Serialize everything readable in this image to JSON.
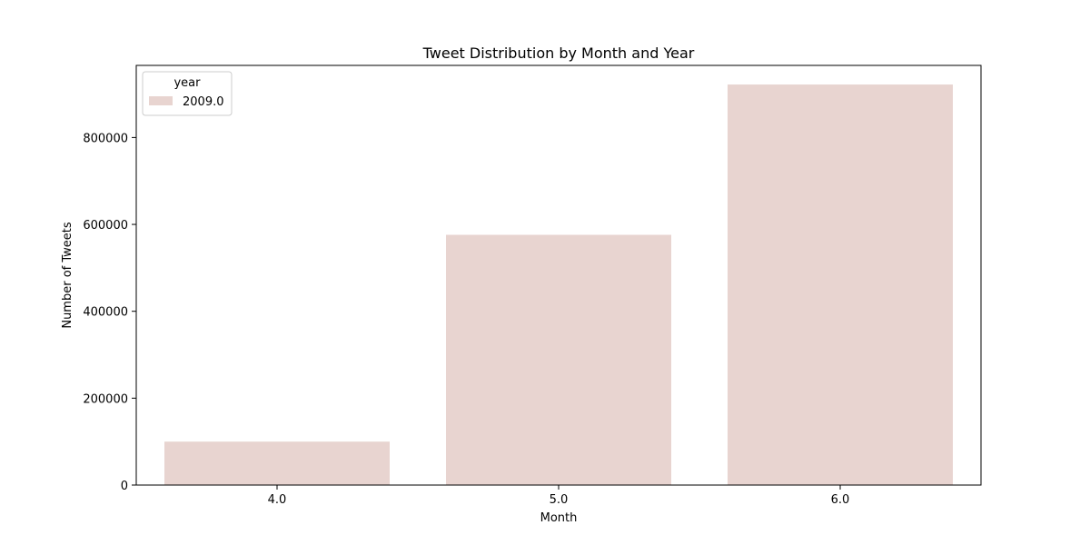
{
  "chart_data": {
    "type": "bar",
    "title": "Tweet Distribution by Month and Year",
    "xlabel": "Month",
    "ylabel": "Number of Tweets",
    "categories": [
      "4.0",
      "5.0",
      "6.0"
    ],
    "series": [
      {
        "name": "2009.0",
        "values": [
          100000,
          576000,
          922000
        ],
        "color": "#e8d4d0"
      }
    ],
    "ylim": [
      0,
      966000
    ],
    "yticks": [
      0,
      200000,
      400000,
      600000,
      800000
    ],
    "legend": {
      "title": "year",
      "placement": "top-left"
    },
    "grid": false
  }
}
